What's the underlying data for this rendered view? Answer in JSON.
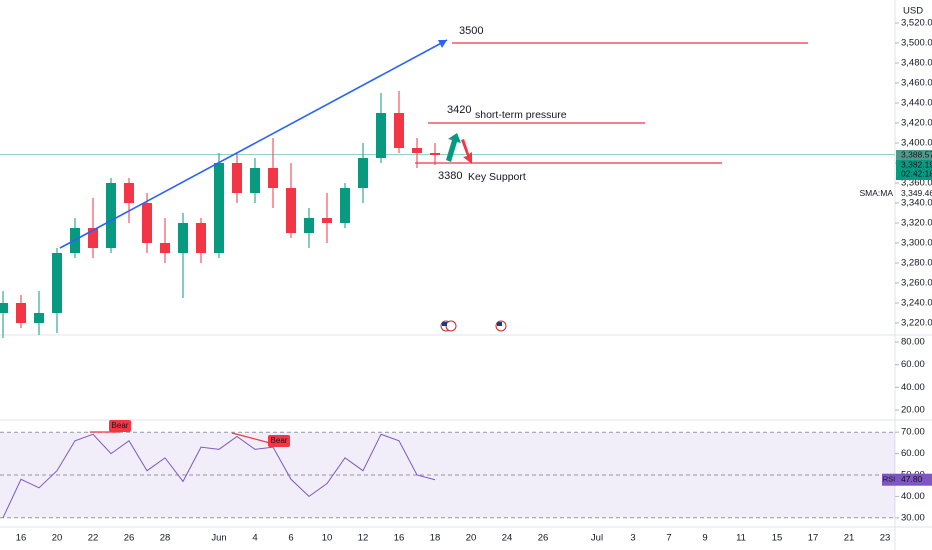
{
  "chart_data": {
    "type": "candlestick",
    "currency": "USD",
    "categories": [
      null,
      "16",
      null,
      "20",
      null,
      "22",
      null,
      "26",
      null,
      "28",
      null,
      null,
      "Jun",
      null,
      "4",
      null,
      "6",
      null,
      "10",
      null,
      "12",
      null,
      "16",
      null,
      "18",
      null,
      "20",
      null,
      "24",
      null,
      "26",
      null,
      null,
      "Jul",
      null,
      "3",
      null,
      "7",
      null,
      "9",
      null,
      "11",
      null,
      "15",
      null,
      "17",
      null,
      "21",
      null,
      "23"
    ],
    "open": [
      3230,
      3240,
      3220,
      3230,
      3290,
      3315,
      3295,
      3360,
      3340,
      3300,
      3290,
      3320,
      3290,
      3380,
      3350,
      3375,
      3355,
      3310,
      3325,
      3320,
      3355,
      3385,
      3430,
      3395,
      3390,
      null,
      null,
      null,
      null,
      null,
      null,
      null,
      null,
      null,
      null,
      null,
      null,
      null,
      null,
      null,
      null,
      null,
      null,
      null,
      null,
      null,
      null,
      null,
      null,
      null
    ],
    "high": [
      3252,
      3248,
      3252,
      3295,
      3325,
      3345,
      3365,
      3365,
      3350,
      3325,
      3330,
      3325,
      3390,
      3390,
      3385,
      3405,
      3380,
      3335,
      3350,
      3360,
      3400,
      3450,
      3452,
      3405,
      3400,
      null,
      null,
      null,
      null,
      null,
      null,
      null,
      null,
      null,
      null,
      null,
      null,
      null,
      null,
      null,
      null,
      null,
      null,
      null,
      null,
      null,
      null,
      null,
      null,
      null
    ],
    "low": [
      3205,
      3215,
      3208,
      3210,
      3285,
      3285,
      3290,
      3320,
      3290,
      3280,
      3245,
      3280,
      3285,
      3340,
      3340,
      3335,
      3305,
      3295,
      3300,
      3315,
      3340,
      3380,
      3390,
      3375,
      3378,
      null,
      null,
      null,
      null,
      null,
      null,
      null,
      null,
      null,
      null,
      null,
      null,
      null,
      null,
      null,
      null,
      null,
      null,
      null,
      null,
      null,
      null,
      null,
      null,
      null
    ],
    "close": [
      3240,
      3220,
      3230,
      3290,
      3315,
      3295,
      3360,
      3340,
      3300,
      3290,
      3320,
      3290,
      3380,
      3350,
      3375,
      3355,
      3310,
      3325,
      3320,
      3355,
      3385,
      3430,
      3395,
      3390,
      3388,
      null,
      null,
      null,
      null,
      null,
      null,
      null,
      null,
      null,
      null,
      null,
      null,
      null,
      null,
      null,
      null,
      null,
      null,
      null,
      null,
      null,
      null,
      null,
      null,
      null
    ],
    "up_color": "#089981",
    "down_color": "#f23645",
    "ylim": [
      3208,
      3543
    ],
    "yticks": [
      {
        "value": 3220,
        "label": "3,220.00"
      },
      {
        "value": 3240,
        "label": "3,240.00"
      },
      {
        "value": 3260,
        "label": "3,260.00"
      },
      {
        "value": 3280,
        "label": "3,280.00"
      },
      {
        "value": 3300,
        "label": "3,300.00"
      },
      {
        "value": 3320,
        "label": "3,320.00"
      },
      {
        "value": 3340,
        "label": "3,340.00"
      },
      {
        "value": 3360,
        "label": "3,360.00"
      },
      {
        "value": 3380,
        "label": "3,380.00"
      },
      {
        "value": 3400,
        "label": "3,400.00"
      },
      {
        "value": 3420,
        "label": "3,420.00"
      },
      {
        "value": 3440,
        "label": "3,440.00"
      },
      {
        "value": 3460,
        "label": "3,460.00"
      },
      {
        "value": 3480,
        "label": "3,480.00"
      },
      {
        "value": 3500,
        "label": "3,500.00"
      },
      {
        "value": 3520,
        "label": "3,520.00"
      }
    ],
    "levels": [
      {
        "value": 3500,
        "label": "3500"
      },
      {
        "value": 3420,
        "label": "3420",
        "note": "short-term pressure"
      },
      {
        "value": 3380,
        "label": "3380",
        "note": "Key Support"
      }
    ],
    "price_labels": [
      {
        "value": 3388.57,
        "label": "3,388.57"
      },
      {
        "value": 3382.19,
        "label": "3,382.19"
      },
      {
        "value": 3349.46,
        "label": "3,349.46"
      }
    ],
    "countdown": "02:42:18",
    "sma_label": "SMA:MA",
    "middle_pane": {
      "ylim": [
        11.2,
        86.2
      ],
      "yticks": [
        {
          "value": 80,
          "label": "80.00"
        },
        {
          "value": 60,
          "label": "60.00"
        },
        {
          "value": 40,
          "label": "40.00"
        },
        {
          "value": 20,
          "label": "20.00"
        }
      ]
    },
    "rsi": {
      "name": "RSI",
      "color": "#7e57c2",
      "values": [
        30,
        48,
        44,
        52,
        66,
        69,
        60,
        66,
        52,
        58,
        47,
        63,
        62,
        68,
        62,
        63,
        48,
        40,
        46,
        58,
        52,
        69,
        66,
        50,
        47.8,
        null,
        null,
        null,
        null,
        null,
        null,
        null,
        null,
        null,
        null,
        null,
        null,
        null,
        null,
        null,
        null,
        null,
        null,
        null,
        null,
        null,
        null,
        null,
        null,
        null
      ],
      "value_labels": [
        null,
        null,
        null,
        null,
        null,
        null,
        null,
        null,
        null,
        null,
        null,
        null,
        null,
        null,
        null,
        null,
        null,
        null,
        null,
        null,
        null,
        null,
        null,
        null,
        "47.80",
        null,
        null,
        null,
        null,
        null,
        null,
        null,
        null,
        null,
        null,
        null,
        null,
        null,
        null,
        null,
        null,
        null,
        null,
        null,
        null,
        null,
        null,
        null,
        null,
        null
      ],
      "ylim": [
        25.7,
        75.7
      ],
      "yticks": [
        {
          "value": 70,
          "label": "70.00"
        },
        {
          "value": 60,
          "label": "60.00"
        },
        {
          "value": 50,
          "label": "50.00"
        },
        {
          "value": 40,
          "label": "40.00"
        },
        {
          "value": 30,
          "label": "30.00"
        }
      ],
      "annotations": [
        "Bear",
        "Bear"
      ]
    }
  }
}
